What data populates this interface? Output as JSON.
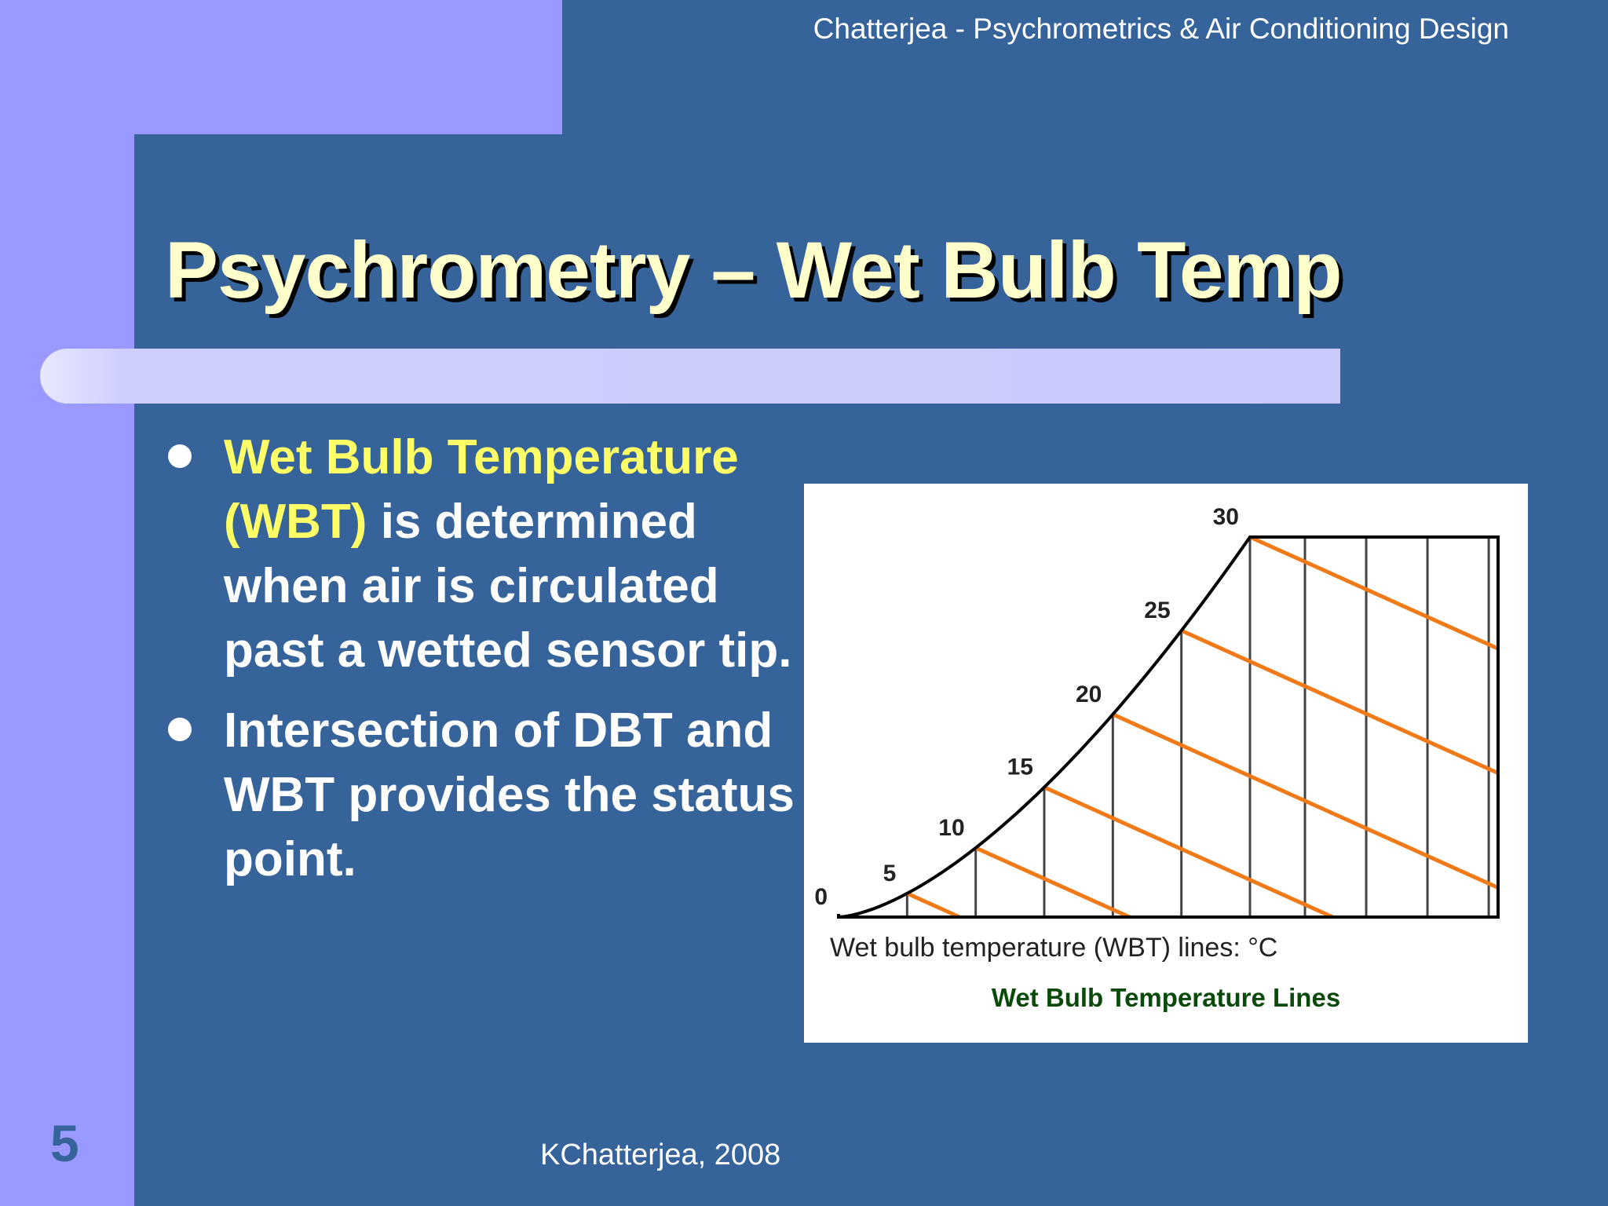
{
  "header": {
    "text": "Chatterjea - Psychrometrics & Air Conditioning Design"
  },
  "slide": {
    "title": "Psychrometry – Wet Bulb Temp",
    "bullets": [
      {
        "highlight": "Wet Bulb Temperature (WBT)",
        "text": "  is determined when air is circulated past a wetted sensor tip."
      },
      {
        "highlight": "",
        "text": "Intersection of DBT and WBT provides the status point."
      }
    ]
  },
  "figure": {
    "wbt_values": [
      0,
      5,
      10,
      15,
      20,
      25,
      30
    ],
    "wbt_labels": [
      "0",
      "5",
      "10",
      "15",
      "20",
      "25",
      "30"
    ],
    "axis_caption": "Wet bulb temperature (WBT) lines: °C",
    "caption": "Wet Bulb Temperature Lines",
    "colors": {
      "wbt_line": "#f07a18",
      "frame": "#000000",
      "caption": "#0a4a0a"
    }
  },
  "footer": {
    "author": "KChatterjea, 2008",
    "page_number": "5"
  }
}
